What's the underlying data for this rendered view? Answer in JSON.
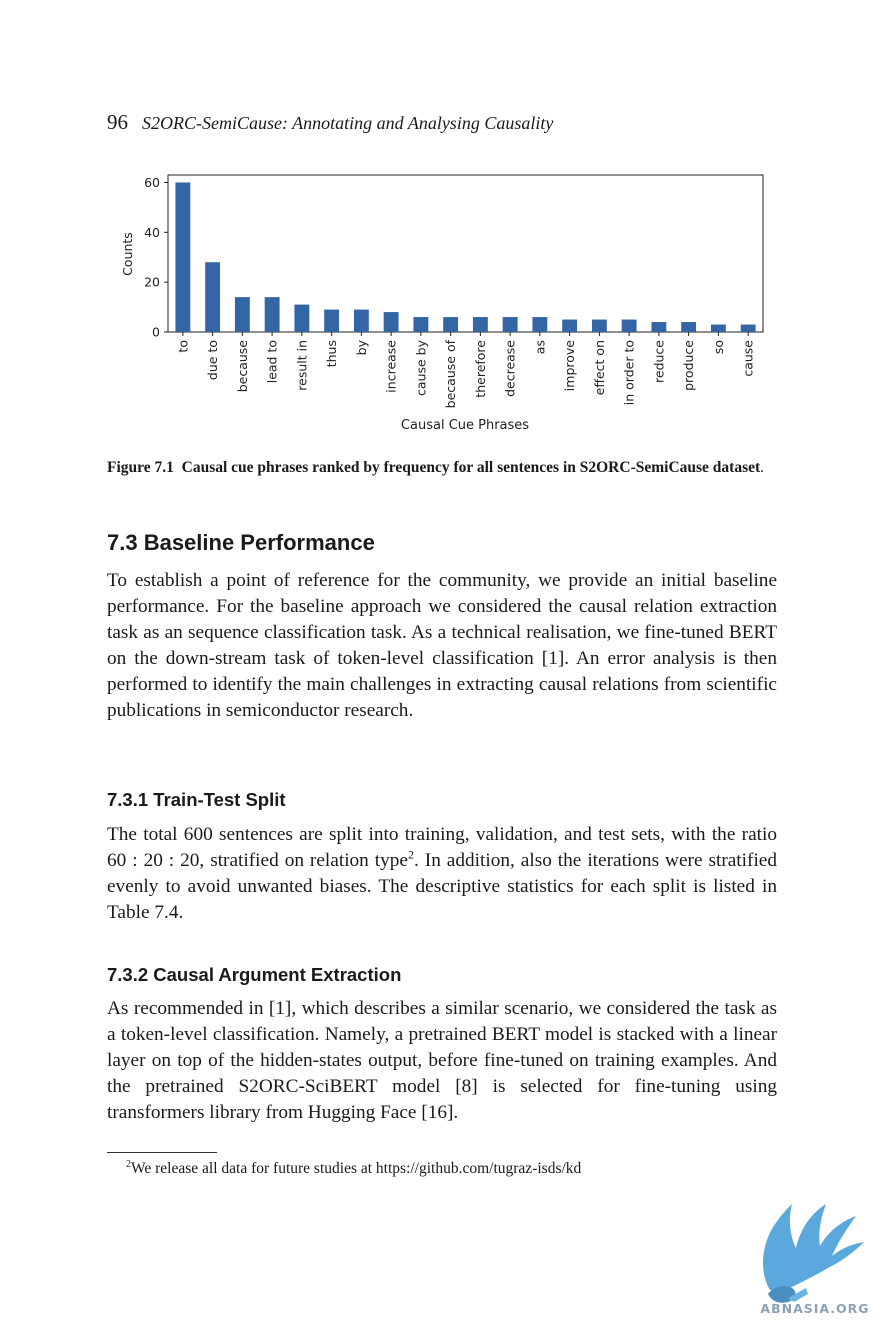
{
  "running_head": {
    "page_number": "96",
    "title": "S2ORC-SemiCause: Annotating and Analysing Causality"
  },
  "chart_data": {
    "type": "bar",
    "categories": [
      "to",
      "due to",
      "because",
      "lead to",
      "result in",
      "thus",
      "by",
      "increase",
      "cause by",
      "because of",
      "therefore",
      "decrease",
      "as",
      "improve",
      "effect on",
      "in order to",
      "reduce",
      "produce",
      "so",
      "cause"
    ],
    "values": [
      60,
      28,
      14,
      14,
      11,
      9,
      9,
      8,
      6,
      6,
      6,
      6,
      6,
      5,
      5,
      5,
      4,
      4,
      3,
      3
    ],
    "xlabel": "Causal Cue Phrases",
    "ylabel": "Counts",
    "ylim": [
      0,
      63
    ],
    "yticks": [
      0,
      20,
      40,
      60
    ],
    "bar_color": "#3465a4",
    "grid": false
  },
  "figure": {
    "label": "Figure 7.1",
    "caption_bold": "Causal cue phrases ranked by frequency for all sentences in S2ORC-SemiCause dataset",
    "caption_end": "."
  },
  "section": {
    "heading": "7.3 Baseline Performance",
    "paragraph": "To establish a point of reference for the community, we provide an initial baseline performance. For the baseline approach we considered the causal relation extraction task as an sequence classification task. As a technical realisation, we fine-tuned BERT on the down-stream task of token-level classification [1]. An error analysis is then performed to identify the main challenges in extracting causal relations from scientific publications in semiconductor research."
  },
  "subsection1": {
    "heading": "7.3.1 Train-Test Split",
    "text_a": "The total 600 sentences are split into training, validation, and test sets, with the ratio 60 : 20 : 20, stratified on relation type",
    "footnote_mark": "2",
    "text_b": ". In addition, also the iterations were stratified evenly to avoid unwanted biases. The descriptive statistics for each split is listed in Table 7.4."
  },
  "subsection2": {
    "heading": "7.3.2 Causal Argument Extraction",
    "paragraph": "As recommended in [1], which describes a similar scenario, we considered the task as a token-level classification. Namely, a pretrained BERT model is stacked with a linear layer on top of the hidden-states output, before fine-tuned on training examples. And the pretrained S2ORC-SciBERT model [8] is selected for fine-tuning using transformers library from Hugging Face [16]."
  },
  "footnote": {
    "mark": "2",
    "text": "We release all data for future studies at https://github.com/tugraz-isds/kd"
  },
  "watermark": {
    "text": "ABNASIA.ORG",
    "icon": "griffin-logo-icon"
  }
}
